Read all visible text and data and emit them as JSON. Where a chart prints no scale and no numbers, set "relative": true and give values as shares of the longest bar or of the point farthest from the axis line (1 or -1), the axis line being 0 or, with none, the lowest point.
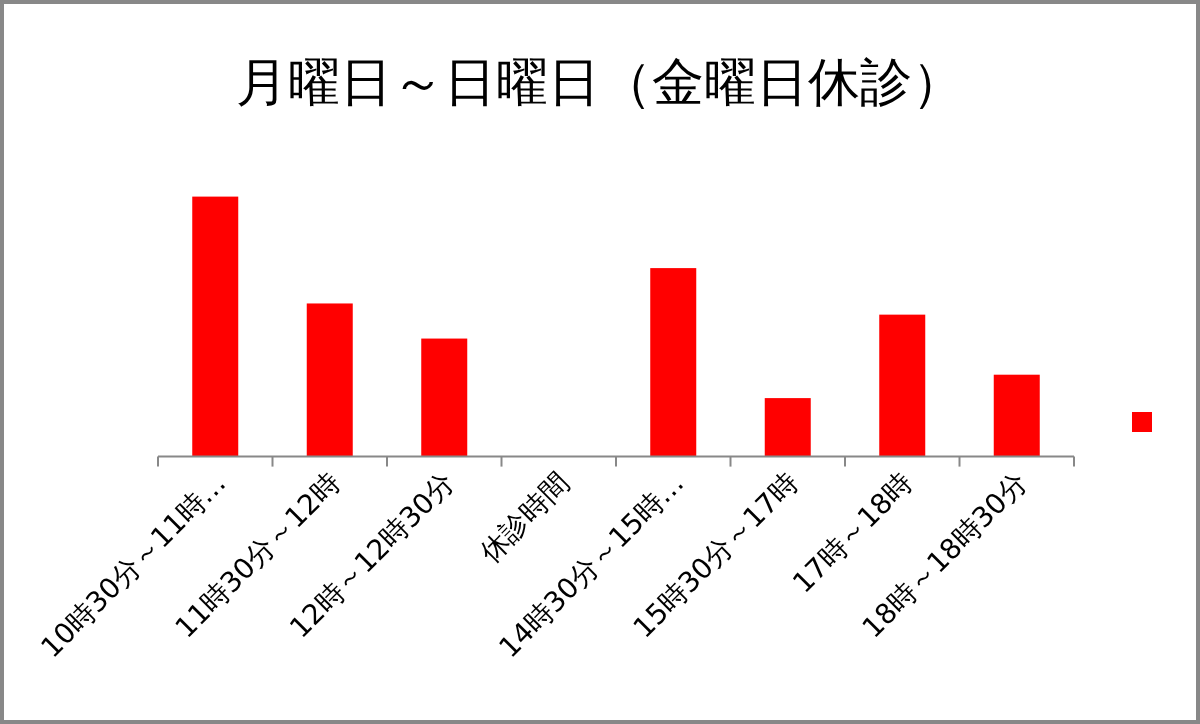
{
  "chart_data": {
    "type": "bar",
    "title": "月曜日～日曜日（金曜日休診）",
    "relative": true,
    "categories": [
      "10時30分～11時…",
      "11時30分～12時",
      "12時～12時30分",
      "休診時間",
      "14時30分～15時…",
      "15時30分～17時",
      "17時～18時",
      "18時～18時30分"
    ],
    "series": [
      {
        "color": "#ff0000",
        "values": [
          1,
          0.589,
          0.454,
          0,
          0.725,
          0.225,
          0.546,
          0.315
        ]
      }
    ]
  }
}
